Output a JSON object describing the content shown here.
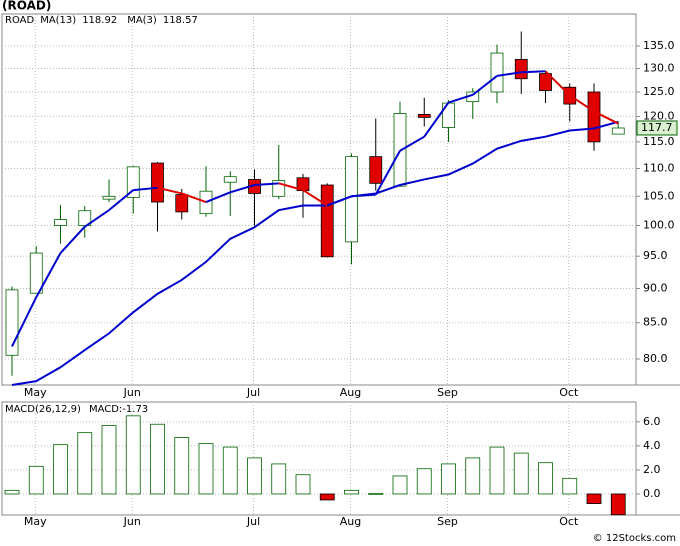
{
  "chart_data": [
    {
      "type": "candlestick",
      "title": "(ROAD)",
      "log_scale": true,
      "grid": true,
      "categories": [
        null,
        "May",
        null,
        null,
        null,
        "Jun",
        null,
        null,
        null,
        null,
        "Jul",
        null,
        null,
        null,
        "Aug",
        null,
        null,
        null,
        "Sep",
        null,
        null,
        null,
        null,
        "Oct",
        null,
        null
      ],
      "ylim": [
        76.6,
        142.4
      ],
      "yticks": [
        {
          "value": 80,
          "label": "80.0"
        },
        {
          "value": 85,
          "label": "85.0"
        },
        {
          "value": 90,
          "label": "90.0"
        },
        {
          "value": 95,
          "label": "95.0"
        },
        {
          "value": 100,
          "label": "100.0"
        },
        {
          "value": 105,
          "label": "105.0"
        },
        {
          "value": 110,
          "label": "110.0"
        },
        {
          "value": 115,
          "label": "115.0"
        },
        {
          "value": 120,
          "label": "120.0"
        },
        {
          "value": 125,
          "label": "125.0"
        },
        {
          "value": 130,
          "label": "130.0"
        },
        {
          "value": 135,
          "label": "135.0"
        }
      ],
      "series": [
        {
          "name": "ROAD",
          "color": "#006400",
          "down_color": "#e00000",
          "last_label": "117.7",
          "open": [
            80.5,
            89.3,
            100,
            100,
            104.5,
            104.8,
            111,
            105.3,
            102,
            107.5,
            108,
            105,
            108.3,
            107,
            97.3,
            112.2,
            106.8,
            120.4,
            117.8,
            123,
            125,
            132,
            128.9,
            126,
            125,
            116.5
          ],
          "high": [
            90.3,
            96.6,
            103.5,
            103.3,
            108,
            110.5,
            111.2,
            106.3,
            110.4,
            109.5,
            109.8,
            114.4,
            109,
            107.3,
            112.8,
            119.6,
            123,
            123.8,
            123.3,
            125.8,
            135.3,
            138.3,
            129.3,
            126.8,
            126.8,
            119
          ],
          "low": [
            77.8,
            89.3,
            97,
            98,
            104,
            102,
            99,
            101,
            101.5,
            101.6,
            100,
            104.5,
            101.3,
            94.8,
            93.7,
            106,
            106.7,
            118,
            115,
            119.5,
            122.7,
            124.6,
            122.7,
            119,
            113.3,
            116.5
          ],
          "close": [
            89.8,
            95.5,
            101,
            102.5,
            105,
            110.3,
            104,
            102.3,
            105.9,
            108.5,
            105.5,
            107.8,
            106,
            94.9,
            112.2,
            107.3,
            120.6,
            119.8,
            122.7,
            125,
            133.4,
            127.8,
            125.3,
            122.5,
            115,
            117.7
          ]
        },
        {
          "name": "MA(13)",
          "color": "#0000cc",
          "last_label": "118.92",
          "values": [
            76.6,
            77.1,
            78.9,
            81.2,
            83.5,
            86.5,
            89.2,
            91.3,
            94.1,
            97.8,
            99.7,
            102.6,
            103.4,
            103.4,
            105,
            105.5,
            107,
            108,
            108.9,
            110.9,
            113.7,
            115.2,
            116,
            117.2,
            117.6,
            118.92
          ]
        },
        {
          "name": "MA(3)",
          "color": "#0000cc",
          "down_color": "#e00000",
          "last_label": "118.57",
          "values": [
            81.7,
            88.7,
            95.5,
            99.8,
            102.6,
            106.1,
            106.5,
            105.5,
            104,
            105.7,
            107,
            107.3,
            106.1,
            103.4,
            105,
            105.3,
            113.3,
            116,
            122.8,
            124.4,
            128.4,
            129.2,
            129.4,
            124.3,
            121,
            118.57
          ]
        }
      ]
    },
    {
      "type": "bar",
      "title": "MACD(26,12,9)",
      "categories": [
        null,
        "May",
        null,
        null,
        null,
        "Jun",
        null,
        null,
        null,
        null,
        "Jul",
        null,
        null,
        null,
        "Aug",
        null,
        null,
        null,
        "Sep",
        null,
        null,
        null,
        null,
        "Oct",
        null,
        null
      ],
      "ylim": [
        -1.75,
        7.65
      ],
      "yticks": [
        {
          "value": 0,
          "label": "0.0"
        },
        {
          "value": 2,
          "label": "2.0"
        },
        {
          "value": 4,
          "label": "4.0"
        },
        {
          "value": 6,
          "label": "6.0"
        }
      ],
      "series": [
        {
          "name": "MACD",
          "legend_label": "MACD:-1.73",
          "color": "#006400",
          "down_color": "#e00000",
          "values": [
            0.3,
            2.3,
            4.1,
            5.1,
            5.7,
            6.5,
            5.8,
            4.7,
            4.2,
            3.9,
            3.0,
            2.5,
            1.6,
            -0.5,
            0.3,
            0.05,
            1.5,
            2.1,
            2.5,
            3.0,
            3.9,
            3.4,
            2.6,
            1.3,
            -0.8,
            -1.73
          ]
        }
      ]
    }
  ]
}
